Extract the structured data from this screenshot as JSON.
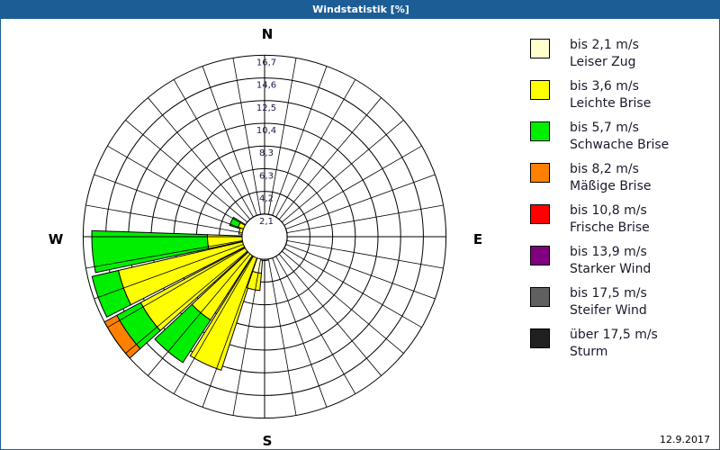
{
  "window": {
    "title": "Windstatistik [%]",
    "date": "12.9.2017"
  },
  "compass": {
    "n": "N",
    "e": "E",
    "s": "S",
    "w": "W"
  },
  "colors": {
    "title_bg": "#1c5d96",
    "leiser_zug": "#ffffcc",
    "leichte_brise": "#ffff00",
    "schwache_brise": "#00ee00",
    "maessige_brise": "#ff8000",
    "frische_brise": "#ff0000",
    "starker_wind": "#800080",
    "steifer_wind": "#606060",
    "sturm": "#202020"
  },
  "legend": [
    {
      "speed": "bis 2,1 m/s",
      "name": "Leiser Zug",
      "color": "#ffffcc"
    },
    {
      "speed": "bis 3,6 m/s",
      "name": "Leichte Brise",
      "color": "#ffff00"
    },
    {
      "speed": "bis 5,7 m/s",
      "name": "Schwache Brise",
      "color": "#00ee00"
    },
    {
      "speed": "bis 8,2 m/s",
      "name": "Mäßige Brise",
      "color": "#ff8000"
    },
    {
      "speed": "bis 10,8 m/s",
      "name": "Frische Brise",
      "color": "#ff0000"
    },
    {
      "speed": "bis 13,9 m/s",
      "name": "Starker Wind",
      "color": "#800080"
    },
    {
      "speed": "bis 17,5 m/s",
      "name": "Steifer Wind",
      "color": "#606060"
    },
    {
      "speed": "über 17,5 m/s",
      "name": "Sturm",
      "color": "#202020"
    }
  ],
  "chart_data": {
    "type": "wind-rose",
    "title": "Windstatistik [%]",
    "radial_ticks": [
      "2,1",
      "4,2",
      "6,3",
      "8,3",
      "10,4",
      "12,5",
      "14,6",
      "16,7"
    ],
    "radial_max": 16.7,
    "directions_labels": [
      "N",
      "E",
      "S",
      "W"
    ],
    "series_names": [
      "Leiser Zug",
      "Leichte Brise",
      "Schwache Brise",
      "Mäßige Brise"
    ],
    "sectors": [
      {
        "bearing": 295,
        "cumulative": [
          0.6,
          2.6,
          3.4,
          3.4
        ]
      },
      {
        "bearing": 283,
        "cumulative": [
          0.6,
          2.4,
          2.4,
          2.4
        ]
      },
      {
        "bearing": 265,
        "cumulative": [
          0.8,
          5.3,
          16.0,
          16.0
        ]
      },
      {
        "bearing": 250,
        "cumulative": [
          0.8,
          13.9,
          16.4,
          16.4
        ]
      },
      {
        "bearing": 235,
        "cumulative": [
          0.8,
          13.0,
          15.5,
          16.8
        ]
      },
      {
        "bearing": 220,
        "cumulative": [
          0.8,
          9.2,
          13.9,
          13.9
        ]
      },
      {
        "bearing": 205,
        "cumulative": [
          0.8,
          13.0,
          13.0,
          13.0
        ]
      },
      {
        "bearing": 192,
        "cumulative": [
          3.4,
          5.0,
          5.0,
          5.0
        ]
      },
      {
        "bearing": 180,
        "cumulative": [
          1.6,
          2.2,
          2.2,
          2.2
        ]
      }
    ]
  }
}
